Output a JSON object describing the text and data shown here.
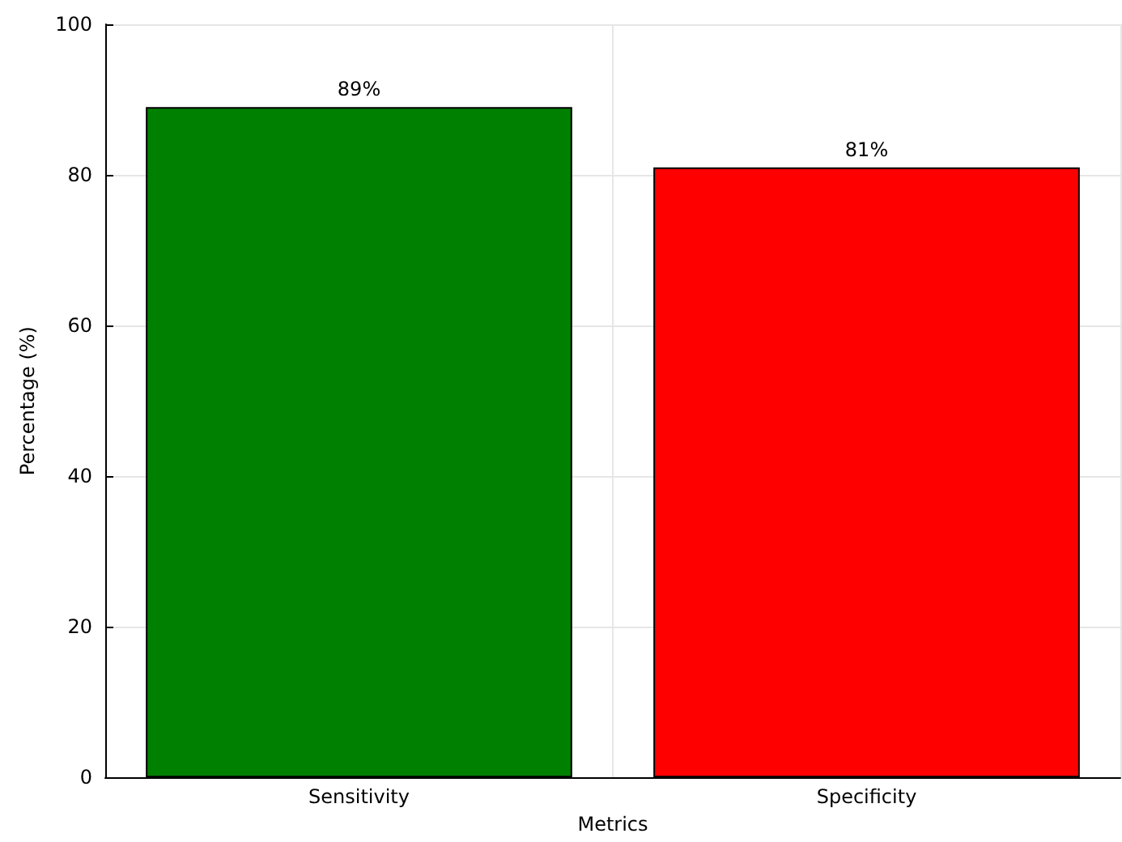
{
  "chart_data": {
    "type": "bar",
    "xlabel": "Metrics",
    "ylabel": "Percentage (%)",
    "categories": [
      "Sensitivity",
      "Specificity"
    ],
    "values": [
      89,
      81
    ],
    "colors": [
      "#008000",
      "#ff0000"
    ],
    "value_labels": [
      "89%",
      "81%"
    ],
    "ylim": [
      0,
      100
    ],
    "yticks": [
      0,
      20,
      40,
      60,
      80,
      100
    ],
    "grid": true
  }
}
